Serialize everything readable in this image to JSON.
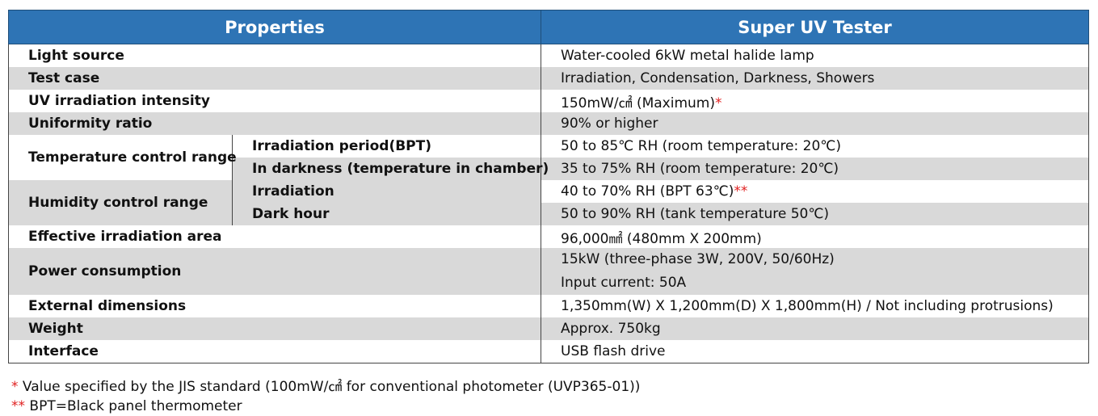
{
  "header": {
    "properties": "Properties",
    "product": "Super UV Tester"
  },
  "rows": [
    {
      "label": "Light source",
      "value": "Water-cooled 6kW metal halide lamp"
    },
    {
      "label": "Test case",
      "value": "Irradiation, Condensation, Darkness, Showers"
    },
    {
      "label": "UV irradiation intensity",
      "value": "150mW/㎠ (Maximum)",
      "note": "*"
    },
    {
      "label": "Uniformity ratio",
      "value": "90% or higher"
    },
    {
      "label": "Temperature control range",
      "sub": [
        {
          "label": "Irradiation period(BPT)",
          "value": "50 to 85℃ RH (room temperature: 20℃)"
        },
        {
          "label": "In darkness (temperature in chamber)",
          "value": "35 to 75% RH (room temperature: 20℃)"
        }
      ]
    },
    {
      "label": "Humidity control range",
      "sub": [
        {
          "label": "Irradiation",
          "value": "40 to 70% RH (BPT 63℃)",
          "note": "**"
        },
        {
          "label": "Dark hour",
          "value": "50 to 90% RH (tank temperature 50℃)"
        }
      ]
    },
    {
      "label": "Effective irradiation area",
      "value": "96,000㎟ (480mm X 200mm)"
    },
    {
      "label": "Power consumption",
      "value": "15kW (three-phase 3W, 200V, 50/60Hz)",
      "value2": "Input current: 50A"
    },
    {
      "label": "External dimensions",
      "value": "1,350mm(W) X 1,200mm(D) X 1,800mm(H) / Not including protrusions)"
    },
    {
      "label": "Weight",
      "value": "Approx. 750kg"
    },
    {
      "label": "Interface",
      "value": "USB flash drive"
    }
  ],
  "footnotes": [
    {
      "mark": "*",
      "text": "Value specified by the JIS standard (100mW/㎠ for conventional photometer (UVP365-01))"
    },
    {
      "mark": "**",
      "text": "BPT=Black panel thermometer"
    }
  ]
}
